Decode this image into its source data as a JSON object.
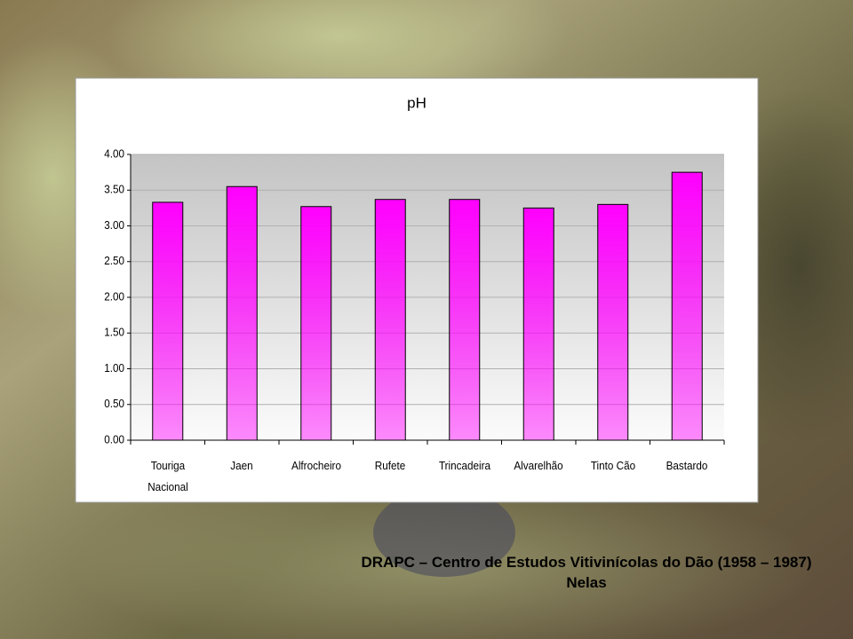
{
  "chart_data": {
    "type": "bar",
    "title": "pH",
    "categories": [
      "Touriga Nacional",
      "Jaen",
      "Alfrocheiro",
      "Rufete",
      "Trincadeira",
      "Alvarelhão",
      "Tinto Cão",
      "Bastardo"
    ],
    "values": [
      3.33,
      3.55,
      3.27,
      3.37,
      3.37,
      3.25,
      3.3,
      3.75
    ],
    "color": "#ff00ff",
    "ylim": [
      0,
      4
    ],
    "yticks": [
      {
        "value": 0,
        "label": "0.00"
      },
      {
        "value": 0.5,
        "label": "0.50"
      },
      {
        "value": 1,
        "label": "1.00"
      },
      {
        "value": 1.5,
        "label": "1.50"
      },
      {
        "value": 2,
        "label": "2.00"
      },
      {
        "value": 2.5,
        "label": "2.50"
      },
      {
        "value": 3,
        "label": "3.00"
      },
      {
        "value": 3.5,
        "label": "3.50"
      },
      {
        "value": 4,
        "label": "4.00"
      }
    ],
    "grid": true
  },
  "footer": {
    "credit": "DRAPC – Centro de Estudos Vitivinícolas do Dão (1958 – 1987)",
    "place": "Nelas"
  }
}
